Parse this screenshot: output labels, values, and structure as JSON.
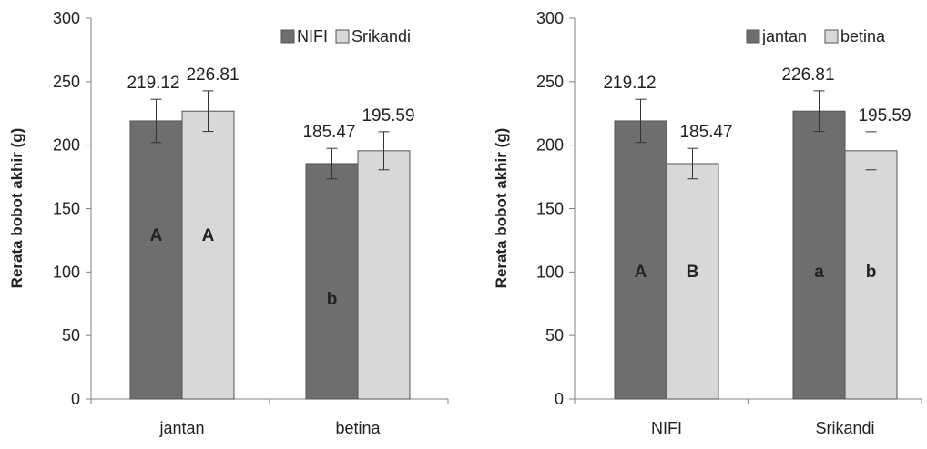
{
  "colors": {
    "series_dark": "#6e6e6e",
    "series_light": "#d8d8d8",
    "axis": "#808080",
    "text": "#222222"
  },
  "chart_data": [
    {
      "type": "bar",
      "title": "",
      "xlabel": "",
      "ylabel": "Rerata bobot akhir (g)",
      "ylim": [
        0,
        300
      ],
      "yticks": [
        0,
        50,
        100,
        150,
        200,
        250,
        300
      ],
      "grid": false,
      "legend": "top-right",
      "categories": [
        "jantan",
        "betina"
      ],
      "series": [
        {
          "name": "NIFI",
          "color": "#6e6e6e",
          "values": [
            219.12,
            185.47
          ],
          "errors": [
            17,
            12
          ],
          "labels": [
            "219.12",
            "185.47"
          ],
          "sig": [
            "A",
            "b"
          ]
        },
        {
          "name": "Srikandi",
          "color": "#d8d8d8",
          "values": [
            226.81,
            195.59
          ],
          "errors": [
            16,
            15
          ],
          "labels": [
            "226.81",
            "195.59"
          ],
          "sig": [
            "A",
            ""
          ]
        }
      ]
    },
    {
      "type": "bar",
      "title": "",
      "xlabel": "",
      "ylabel": "Rerata bobot akhir (g)",
      "ylim": [
        0,
        300
      ],
      "yticks": [
        0,
        50,
        100,
        150,
        200,
        250,
        300
      ],
      "grid": false,
      "legend": "top-right",
      "categories": [
        "NIFI",
        "Srikandi"
      ],
      "series": [
        {
          "name": "jantan",
          "color": "#6e6e6e",
          "values": [
            219.12,
            226.81
          ],
          "errors": [
            17,
            16
          ],
          "labels": [
            "219.12",
            "226.81"
          ],
          "sig": [
            "A",
            "a"
          ]
        },
        {
          "name": "betina",
          "color": "#d8d8d8",
          "values": [
            185.47,
            195.59
          ],
          "errors": [
            12,
            15
          ],
          "labels": [
            "185.47",
            "195.59"
          ],
          "sig": [
            "B",
            "b"
          ]
        }
      ]
    }
  ]
}
